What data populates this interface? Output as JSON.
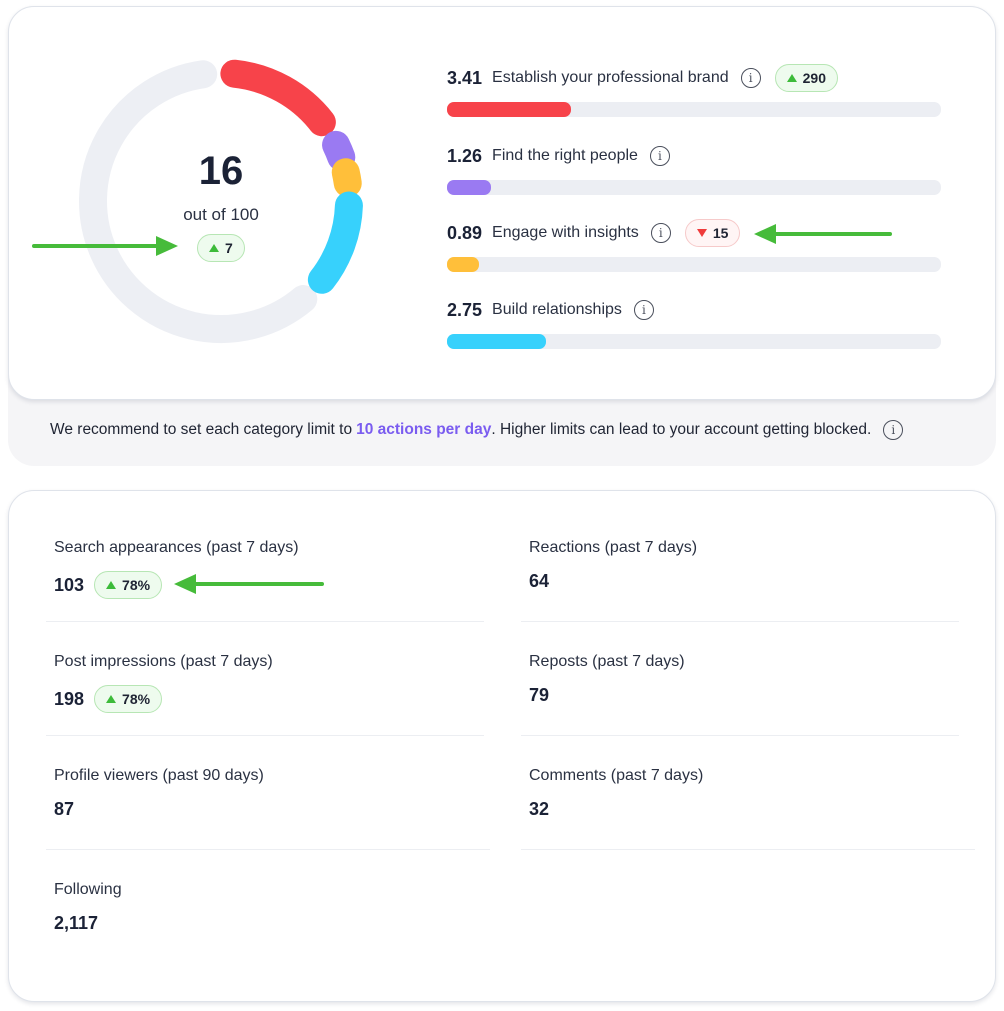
{
  "score": {
    "value": "16",
    "subtitle": "out of 100",
    "change": {
      "direction": "up",
      "value": "7"
    },
    "max": 100,
    "ring_segments": [
      {
        "name": "Establish your professional brand",
        "color": "#f7434a"
      },
      {
        "name": "Find the right people",
        "color": "#9a7af2"
      },
      {
        "name": "Engage with insights",
        "color": "#ffbf3a"
      },
      {
        "name": "Build relationships",
        "color": "#37d1fc"
      }
    ]
  },
  "categories": [
    {
      "value": "3.41",
      "label": "Establish your professional brand",
      "info_icon": "info-icon",
      "badge": {
        "direction": "up",
        "value": "290"
      },
      "progress": 0.25,
      "color": "#f7434a"
    },
    {
      "value": "1.26",
      "label": "Find the right people",
      "info_icon": "info-icon",
      "badge": null,
      "progress": 0.09,
      "color": "#9a7af2"
    },
    {
      "value": "0.89",
      "label": "Engage with insights",
      "info_icon": "info-icon",
      "badge": {
        "direction": "down",
        "value": "15"
      },
      "progress": 0.065,
      "color": "#ffbf3a"
    },
    {
      "value": "2.75",
      "label": "Build relationships",
      "info_icon": "info-icon",
      "badge": null,
      "progress": 0.2,
      "color": "#37d1fc"
    }
  ],
  "recommendation": {
    "prefix": "We recommend to set each category limit to",
    "highlight": "10 actions per day",
    "suffix": ". Higher limits can lead to your account getting blocked.",
    "info_icon": "info-icon"
  },
  "stats": [
    {
      "label": "Search appearances (past 7 days)",
      "value": "103",
      "badge": {
        "direction": "up",
        "value": "78%"
      }
    },
    {
      "label": "Reactions (past 7 days)",
      "value": "64",
      "badge": null
    },
    {
      "label": "Post impressions (past 7 days)",
      "value": "198",
      "badge": {
        "direction": "up",
        "value": "78%"
      }
    },
    {
      "label": "Reposts (past 7 days)",
      "value": "79",
      "badge": null
    },
    {
      "label": "Profile viewers (past 90 days)",
      "value": "87",
      "badge": null
    },
    {
      "label": "Comments (past 7 days)",
      "value": "32",
      "badge": null
    },
    {
      "label": "Following",
      "value": "2,117",
      "badge": null
    }
  ],
  "annotations": {
    "arrow_color": "#46bb3a"
  },
  "icons": {
    "info": "i"
  }
}
